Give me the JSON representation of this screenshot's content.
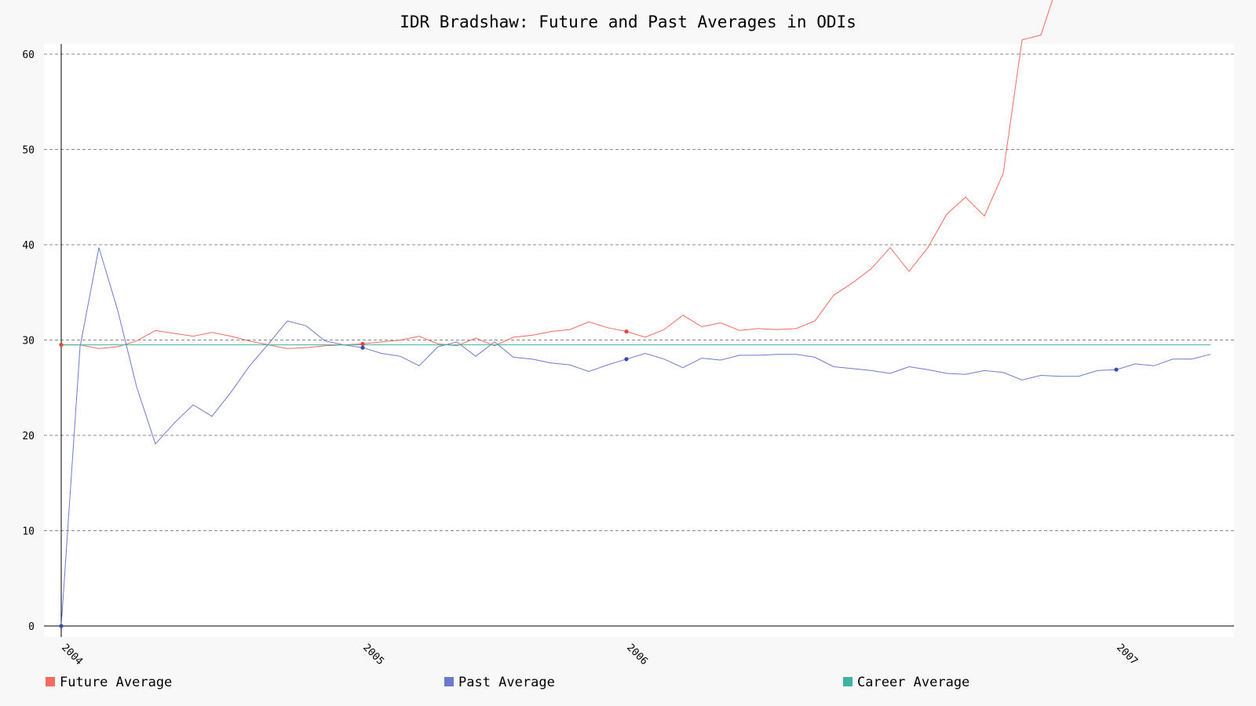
{
  "chart_data": {
    "type": "line",
    "title": "IDR Bradshaw: Future and Past Averages in ODIs",
    "xlabel": "",
    "ylabel": "",
    "ylim": [
      0,
      60
    ],
    "yticks": [
      0,
      10,
      20,
      30,
      40,
      50,
      60
    ],
    "xtick_labels": [
      "2004",
      "2005",
      "2006",
      "2007"
    ],
    "grid": true,
    "legend_position": "bottom",
    "colors": {
      "future": "#f26b5e",
      "past": "#6b7bcc",
      "career": "#3fb3a0",
      "grid": "#888888",
      "axis": "#000000"
    },
    "x": [
      0,
      1,
      2,
      3,
      4,
      5,
      6,
      7,
      8,
      9,
      10,
      11,
      12,
      13,
      14,
      15,
      16,
      17,
      18,
      19,
      20,
      21,
      22,
      23,
      24,
      25,
      26,
      27,
      28,
      29,
      30,
      31,
      32,
      33,
      34,
      35,
      36,
      37,
      38,
      39,
      40,
      41,
      42,
      43,
      44,
      45,
      46,
      47,
      48,
      49,
      50,
      51,
      52,
      53,
      54,
      55,
      56,
      57,
      58,
      59,
      60,
      61
    ],
    "year_ticks": [
      {
        "label": "2004",
        "x": 0
      },
      {
        "label": "2005",
        "x": 16
      },
      {
        "label": "2006",
        "x": 30
      },
      {
        "label": "2007",
        "x": 56
      }
    ],
    "series": [
      {
        "name": "Future Average",
        "values": [
          29.5,
          29.5,
          29.1,
          29.3,
          29.9,
          31.0,
          30.7,
          30.4,
          30.8,
          30.4,
          29.9,
          29.5,
          29.1,
          29.2,
          29.4,
          29.5,
          29.6,
          29.8,
          30.0,
          30.4,
          29.6,
          29.4,
          30.2,
          29.4,
          30.3,
          30.5,
          30.9,
          31.1,
          31.9,
          31.3,
          30.9,
          30.3,
          31.1,
          32.6,
          31.4,
          31.8,
          31.0,
          31.2,
          31.1,
          31.2,
          32.0,
          34.7,
          36.0,
          37.5,
          39.7,
          37.2,
          39.7,
          43.2,
          45.0,
          43.0,
          47.5,
          61.5,
          62.0,
          68.0,
          null,
          null,
          null,
          null,
          null,
          null,
          null,
          null
        ]
      },
      {
        "name": "Past Average",
        "values": [
          0.0,
          29.3,
          39.7,
          33.1,
          25.1,
          19.1,
          21.3,
          23.2,
          22.0,
          24.5,
          27.3,
          29.6,
          32.0,
          31.5,
          29.9,
          29.5,
          29.2,
          28.6,
          28.3,
          27.3,
          29.3,
          29.8,
          28.3,
          29.8,
          28.2,
          28.0,
          27.6,
          27.4,
          26.7,
          27.4,
          28.0,
          28.6,
          28.0,
          27.1,
          28.1,
          27.9,
          28.4,
          28.4,
          28.5,
          28.5,
          28.2,
          27.2,
          27.0,
          26.8,
          26.5,
          27.2,
          26.9,
          26.5,
          26.4,
          26.8,
          26.6,
          25.8,
          26.3,
          26.2,
          26.2,
          26.8,
          26.9,
          27.5,
          27.3,
          28.0,
          28.0,
          28.5
        ]
      },
      {
        "name": "Career Average",
        "values": [
          29.5,
          29.5,
          29.5,
          29.5,
          29.5,
          29.5,
          29.5,
          29.5,
          29.5,
          29.5,
          29.5,
          29.5,
          29.5,
          29.5,
          29.5,
          29.5,
          29.5,
          29.5,
          29.5,
          29.5,
          29.5,
          29.5,
          29.5,
          29.5,
          29.5,
          29.5,
          29.5,
          29.5,
          29.5,
          29.5,
          29.5,
          29.5,
          29.5,
          29.5,
          29.5,
          29.5,
          29.5,
          29.5,
          29.5,
          29.5,
          29.5,
          29.5,
          29.5,
          29.5,
          29.5,
          29.5,
          29.5,
          29.5,
          29.5,
          29.5,
          29.5,
          29.5,
          29.5,
          29.5,
          29.5,
          29.5,
          29.5,
          29.5,
          29.5,
          29.5,
          29.5,
          29.5
        ]
      }
    ],
    "markers": [
      {
        "series": "Future Average",
        "index": 0
      },
      {
        "series": "Future Average",
        "index": 16
      },
      {
        "series": "Future Average",
        "index": 30
      },
      {
        "series": "Past Average",
        "index": 0
      },
      {
        "series": "Past Average",
        "index": 16
      },
      {
        "series": "Past Average",
        "index": 30
      },
      {
        "series": "Past Average",
        "index": 56
      }
    ]
  }
}
